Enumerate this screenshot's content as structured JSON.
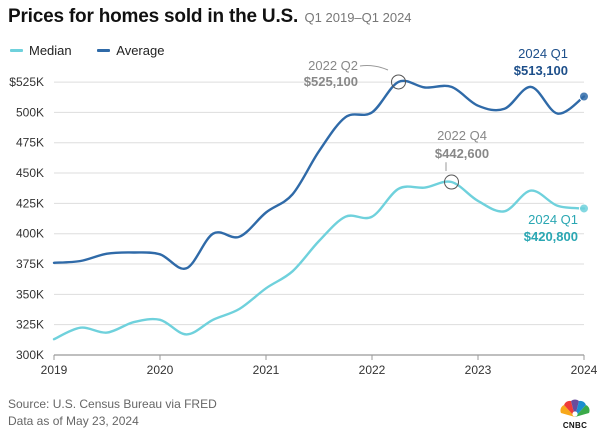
{
  "header": {
    "title": "Prices for homes sold in the U.S.",
    "subtitle": "Q1 2019–Q1 2024"
  },
  "colors": {
    "median": "#6fd1dc",
    "average": "#2f6aa8",
    "annotation_gray": "#888888",
    "grid": "#dddddd"
  },
  "chart_data": {
    "type": "line",
    "title": "Prices for homes sold in the U.S.",
    "subtitle": "Q1 2019–Q1 2024",
    "xlabel": "",
    "ylabel": "",
    "x": [
      2019.0,
      2019.25,
      2019.5,
      2019.75,
      2020.0,
      2020.25,
      2020.5,
      2020.75,
      2021.0,
      2021.25,
      2021.5,
      2021.75,
      2022.0,
      2022.25,
      2022.5,
      2022.75,
      2023.0,
      2023.25,
      2023.5,
      2023.75,
      2024.0
    ],
    "xlim": [
      2019,
      2024
    ],
    "ylim": [
      300000,
      530000
    ],
    "x_ticks": [
      {
        "value": 2019,
        "label": "2019"
      },
      {
        "value": 2020,
        "label": "2020"
      },
      {
        "value": 2021,
        "label": "2021"
      },
      {
        "value": 2022,
        "label": "2022"
      },
      {
        "value": 2023,
        "label": "2023"
      },
      {
        "value": 2024,
        "label": "2024"
      }
    ],
    "y_ticks": [
      {
        "value": 300000,
        "label": "300K"
      },
      {
        "value": 325000,
        "label": "325K"
      },
      {
        "value": 350000,
        "label": "350K"
      },
      {
        "value": 375000,
        "label": "375K"
      },
      {
        "value": 400000,
        "label": "400K"
      },
      {
        "value": 425000,
        "label": "425K"
      },
      {
        "value": 450000,
        "label": "450K"
      },
      {
        "value": 475000,
        "label": "475K"
      },
      {
        "value": 500000,
        "label": "500K"
      },
      {
        "value": 525000,
        "label": "$525K"
      }
    ],
    "grid": true,
    "legend": {
      "position": "top-left",
      "entries": [
        "Median",
        "Average"
      ]
    },
    "series": [
      {
        "name": "Median",
        "key": "median",
        "values": [
          313000,
          322500,
          318500,
          327000,
          329000,
          317000,
          329000,
          338000,
          355000,
          369000,
          394000,
          414000,
          414000,
          437000,
          438000,
          442600,
          427000,
          418500,
          435500,
          423000,
          420800
        ]
      },
      {
        "name": "Average",
        "key": "average",
        "values": [
          376000,
          377500,
          383500,
          384500,
          383000,
          371500,
          400000,
          397500,
          417500,
          432500,
          468000,
          496000,
          500000,
          525100,
          520500,
          521000,
          505500,
          503000,
          521000,
          499000,
          513100
        ]
      }
    ],
    "annotations": [
      {
        "id": "avg-peak",
        "series": "average",
        "x": 2022.25,
        "y": 525100,
        "label": "2022 Q2",
        "value_label": "$525,100",
        "color": "gray"
      },
      {
        "id": "median-peak",
        "series": "median",
        "x": 2022.75,
        "y": 442600,
        "label": "2022 Q4",
        "value_label": "$442,600",
        "color": "gray"
      },
      {
        "id": "avg-latest",
        "series": "average",
        "x": 2024.0,
        "y": 513100,
        "label": "2024 Q1",
        "value_label": "$513,100",
        "color": "average"
      },
      {
        "id": "median-latest",
        "series": "median",
        "x": 2024.0,
        "y": 420800,
        "label": "2024 Q1",
        "value_label": "$420,800",
        "color": "median"
      }
    ]
  },
  "footer": {
    "source": "Source: U.S. Census Bureau via FRED",
    "date_note": "Data as of May 23, 2024"
  },
  "logo": {
    "text": "CNBC",
    "icon": "peacock-icon"
  }
}
